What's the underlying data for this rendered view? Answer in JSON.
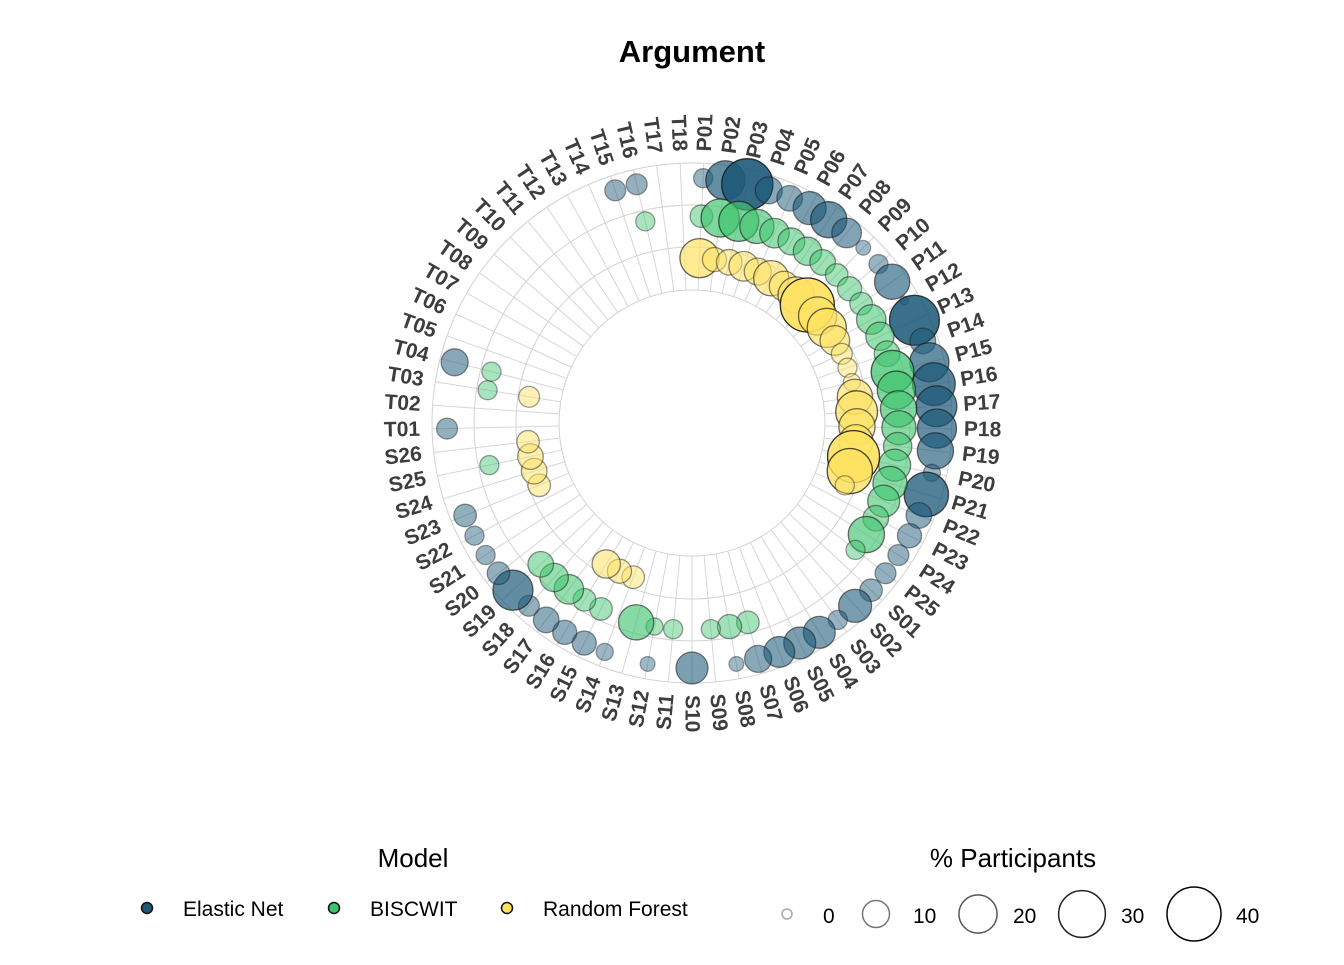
{
  "chart_data": {
    "type": "scatter",
    "subtype": "polar-bubble",
    "title": "Argument",
    "categories": [
      "P01",
      "P02",
      "P03",
      "P04",
      "P05",
      "P06",
      "P07",
      "P08",
      "P09",
      "P10",
      "P11",
      "P12",
      "P13",
      "P14",
      "P15",
      "P16",
      "P17",
      "P18",
      "P19",
      "P20",
      "P21",
      "P22",
      "P23",
      "P24",
      "P25",
      "S01",
      "S02",
      "S03",
      "S04",
      "S05",
      "S06",
      "S07",
      "S08",
      "S09",
      "S10",
      "S11",
      "S12",
      "S13",
      "S14",
      "S15",
      "S16",
      "S17",
      "S18",
      "S19",
      "S20",
      "S21",
      "S22",
      "S23",
      "S24",
      "S25",
      "S26",
      "T01",
      "T02",
      "T03",
      "T04",
      "T05",
      "T06",
      "T07",
      "T08",
      "T09",
      "T10",
      "T11",
      "T12",
      "T13",
      "T14",
      "T15",
      "T16",
      "T17",
      "T18"
    ],
    "series": [
      {
        "name": "Elastic Net",
        "color": "#1b5878",
        "values": [
          5,
          21,
          36,
          10,
          9,
          15,
          18,
          12,
          3,
          5,
          17,
          1,
          34,
          9,
          21,
          25,
          23,
          21,
          18,
          4,
          27,
          9,
          8,
          6,
          6,
          7,
          15,
          5,
          14,
          14,
          13,
          10,
          3,
          null,
          14,
          null,
          3,
          null,
          4,
          8,
          8,
          9,
          6,
          22,
          7,
          5,
          5,
          7,
          null,
          null,
          null,
          6,
          null,
          null,
          10,
          null,
          null,
          null,
          null,
          null,
          null,
          null,
          null,
          null,
          null,
          6,
          6,
          null,
          null
        ]
      },
      {
        "name": "BISCWIT",
        "color": "#3ec46d",
        "values": [
          7,
          20,
          22,
          16,
          12,
          10,
          11,
          9,
          7,
          8,
          7,
          12,
          11,
          9,
          25,
          20,
          18,
          16,
          11,
          14,
          16,
          14,
          9,
          18,
          5,
          null,
          null,
          null,
          null,
          null,
          null,
          7,
          8,
          5,
          null,
          5,
          4,
          17,
          null,
          7,
          7,
          12,
          11,
          9,
          null,
          null,
          null,
          null,
          null,
          5,
          null,
          null,
          null,
          5,
          5,
          null,
          null,
          null,
          null,
          null,
          null,
          null,
          null,
          null,
          null,
          null,
          5,
          null,
          null
        ]
      },
      {
        "name": "Random Forest",
        "color": "#fde262",
        "values": [
          21,
          8,
          9,
          12,
          10,
          17,
          12,
          18,
          40,
          20,
          21,
          12,
          6,
          5,
          4,
          17,
          24,
          18,
          16,
          37,
          28,
          5,
          null,
          null,
          null,
          null,
          null,
          null,
          null,
          null,
          null,
          null,
          null,
          null,
          null,
          null,
          null,
          null,
          7,
          8,
          11,
          null,
          null,
          null,
          null,
          null,
          null,
          7,
          9,
          9,
          7,
          null,
          null,
          6,
          null,
          null,
          null,
          null,
          null,
          null,
          null,
          null,
          null,
          null,
          null,
          null,
          null,
          null,
          null
        ]
      }
    ],
    "legend": {
      "color_title": "Model",
      "size_title": "% Participants",
      "size_breaks": [
        0,
        10,
        20,
        30,
        40
      ],
      "placement": "bottom"
    }
  }
}
